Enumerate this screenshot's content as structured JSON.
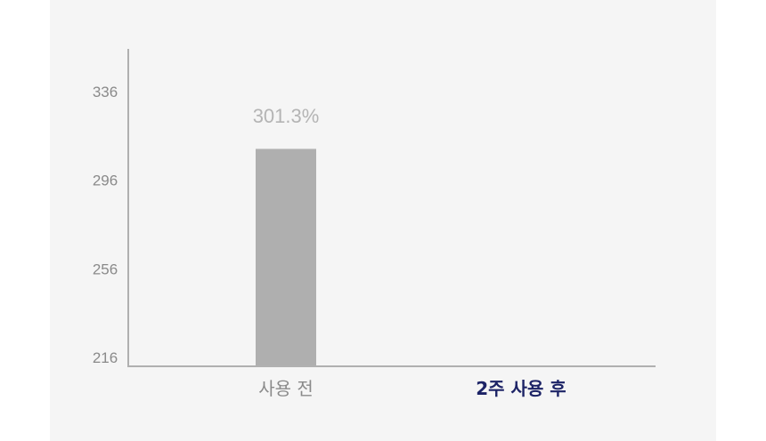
{
  "chart_data": {
    "type": "bar",
    "categories": [
      "사용 전",
      "2주 사용 후"
    ],
    "values": [
      301.3,
      null
    ],
    "data_labels": [
      "301.3%",
      ""
    ],
    "yticks": [
      216,
      256,
      296,
      336
    ],
    "ylim": [
      216,
      356
    ],
    "grid": false,
    "colors": {
      "bar": "#afafaf",
      "axis": "#b0b0b0",
      "tick_text": "#8a8a8a",
      "value_label": "#b4b4b4",
      "category_1": "#8a8a8a",
      "category_2": "#1c2366"
    },
    "category_bold": [
      false,
      true
    ]
  }
}
